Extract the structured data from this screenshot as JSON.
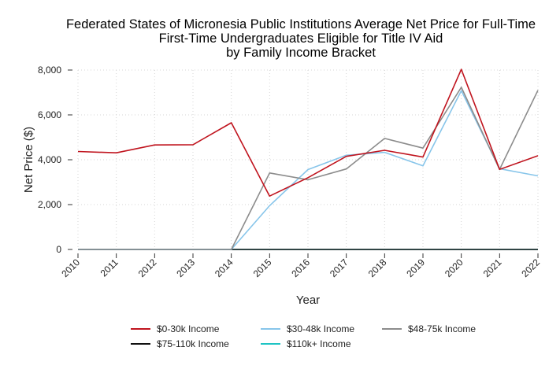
{
  "chart_data": {
    "type": "line",
    "title_lines": [
      "Federated States of Micronesia Public Institutions Average Net Price for Full-Time",
      "First-Time Undergraduates Eligible for Title IV Aid",
      "by Family Income Bracket"
    ],
    "xlabel": "Year",
    "ylabel": "Net Price ($)",
    "x": [
      2010,
      2011,
      2012,
      2013,
      2014,
      2015,
      2016,
      2017,
      2018,
      2019,
      2020,
      2021,
      2022
    ],
    "x_tick_labels": [
      "2010",
      "2011",
      "2012",
      "2013",
      "2014",
      "2015",
      "2016",
      "2017",
      "2018",
      "2019",
      "2020",
      "2021",
      "2022"
    ],
    "ylim": [
      0,
      8000
    ],
    "y_ticks": [
      0,
      2000,
      4000,
      6000,
      8000
    ],
    "y_tick_labels": [
      "0",
      "2,000",
      "4,000",
      "6,000",
      "8,000"
    ],
    "grid": true,
    "legend_position": "bottom",
    "series": [
      {
        "name": "$0-30k Income",
        "color": "#c0141e",
        "values": [
          4370,
          4310,
          4660,
          4670,
          5650,
          2380,
          3200,
          4150,
          4420,
          4120,
          8030,
          3570,
          4180
        ]
      },
      {
        "name": "$30-48k Income",
        "color": "#87c5ea",
        "values": [
          0,
          0,
          0,
          0,
          0,
          1950,
          3560,
          4200,
          4330,
          3730,
          7080,
          3600,
          3280
        ]
      },
      {
        "name": "$48-75k Income",
        "color": "#8c8c8c",
        "values": [
          0,
          0,
          0,
          0,
          0,
          3410,
          3110,
          3590,
          4950,
          4520,
          7230,
          3570,
          7100
        ]
      },
      {
        "name": "$75-110k Income",
        "color": "#111111",
        "values": [
          0,
          0,
          0,
          0,
          0,
          0,
          0,
          0,
          0,
          0,
          0,
          0,
          0
        ]
      },
      {
        "name": "$110k+ Income",
        "color": "#1fc4c4",
        "values": [
          0,
          0,
          0,
          0,
          0,
          0,
          0,
          0,
          0,
          0,
          0,
          0,
          0
        ]
      }
    ]
  }
}
